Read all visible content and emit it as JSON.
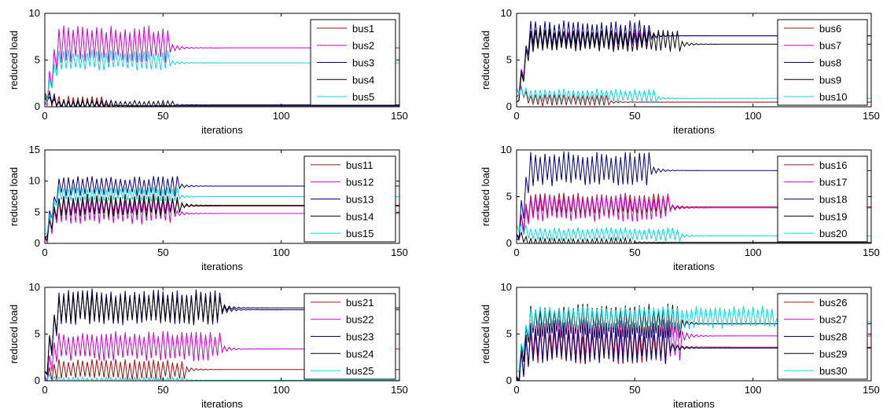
{
  "colors": {
    "bus_red": "#a01010",
    "bus_magenta": "#cc00cc",
    "bus_navy": "#000080",
    "bus_black": "#000000",
    "bus_cyan": "#00dddd"
  },
  "chart_data": [
    {
      "type": "line",
      "xlabel": "iterations",
      "ylabel": "reduced load",
      "xlim": [
        0,
        150
      ],
      "ylim": [
        0,
        10
      ],
      "xticks": [
        0,
        50,
        100,
        150
      ],
      "yticks": [
        0,
        5,
        10
      ],
      "legend_position": "top-right",
      "series": [
        {
          "name": "bus1",
          "color": "#a01010",
          "steady": 0.1,
          "amp": 0.7,
          "settle": 25,
          "start": 1.2,
          "offset": 0.2
        },
        {
          "name": "bus2",
          "color": "#cc00cc",
          "steady": 6.3,
          "amp": 1.6,
          "settle": 53,
          "start": 0.5,
          "offset": 0.4
        },
        {
          "name": "bus3",
          "color": "#000080",
          "steady": 0.1,
          "amp": 0.4,
          "settle": 30,
          "start": 1.5,
          "offset": 0.1
        },
        {
          "name": "bus4",
          "color": "#000000",
          "steady": 0.2,
          "amp": 0.3,
          "settle": 55,
          "start": 1.0,
          "offset": 0.1
        },
        {
          "name": "bus5",
          "color": "#00dddd",
          "steady": 4.7,
          "amp": 0.9,
          "settle": 53,
          "start": 0.5,
          "offset": 0.3
        }
      ]
    },
    {
      "type": "line",
      "xlabel": "iterations",
      "ylabel": "reduced load",
      "xlim": [
        0,
        150
      ],
      "ylim": [
        0,
        10
      ],
      "xticks": [
        0,
        50,
        100,
        150
      ],
      "yticks": [
        0,
        5,
        10
      ],
      "legend_position": "top-right",
      "series": [
        {
          "name": "bus6",
          "color": "#a01010",
          "steady": 0.5,
          "amp": 0.5,
          "settle": 40,
          "start": 2.0,
          "offset": 0.2
        },
        {
          "name": "bus7",
          "color": "#cc00cc",
          "steady": 7.6,
          "amp": 0.8,
          "settle": 57,
          "start": 1.0,
          "offset": -0.3
        },
        {
          "name": "bus8",
          "color": "#000080",
          "steady": 7.6,
          "amp": 1.2,
          "settle": 57,
          "start": 0.5,
          "offset": 0.2
        },
        {
          "name": "bus9",
          "color": "#000000",
          "steady": 6.7,
          "amp": 1.0,
          "settle": 70,
          "start": 0.5,
          "offset": 0.4
        },
        {
          "name": "bus10",
          "color": "#00dddd",
          "steady": 0.9,
          "amp": 0.6,
          "settle": 60,
          "start": 2.0,
          "offset": 0.3
        }
      ]
    },
    {
      "type": "line",
      "xlabel": "iterations",
      "ylabel": "reduced load",
      "xlim": [
        0,
        150
      ],
      "ylim": [
        0,
        15
      ],
      "xticks": [
        0,
        50,
        100,
        150
      ],
      "yticks": [
        0,
        5,
        10,
        15
      ],
      "legend_position": "top-right",
      "series": [
        {
          "name": "bus11",
          "color": "#a01010",
          "steady": 6.0,
          "amp": 1.0,
          "settle": 58,
          "start": 1.0,
          "offset": 0.0
        },
        {
          "name": "bus12",
          "color": "#cc00cc",
          "steady": 4.8,
          "amp": 1.8,
          "settle": 55,
          "start": 1.0,
          "offset": 0.5
        },
        {
          "name": "bus13",
          "color": "#000080",
          "steady": 9.2,
          "amp": 1.3,
          "settle": 57,
          "start": 1.0,
          "offset": 0.0
        },
        {
          "name": "bus14",
          "color": "#000000",
          "steady": 6.1,
          "amp": 1.5,
          "settle": 58,
          "start": 1.0,
          "offset": 0.0
        },
        {
          "name": "bus15",
          "color": "#00dddd",
          "steady": 7.5,
          "amp": 1.0,
          "settle": 57,
          "start": 1.5,
          "offset": 0.4
        }
      ]
    },
    {
      "type": "line",
      "xlabel": "iterations",
      "ylabel": "reduced load",
      "xlim": [
        0,
        150
      ],
      "ylim": [
        0,
        10
      ],
      "xticks": [
        0,
        50,
        100,
        150
      ],
      "yticks": [
        0,
        5,
        10
      ],
      "legend_position": "top-right",
      "series": [
        {
          "name": "bus16",
          "color": "#a01010",
          "steady": 3.9,
          "amp": 1.0,
          "settle": 65,
          "start": 1.0,
          "offset": 0.3
        },
        {
          "name": "bus17",
          "color": "#cc00cc",
          "steady": 3.8,
          "amp": 1.2,
          "settle": 65,
          "start": 1.0,
          "offset": 0.0
        },
        {
          "name": "bus18",
          "color": "#000080",
          "steady": 7.8,
          "amp": 1.5,
          "settle": 57,
          "start": 0.5,
          "offset": 0.2
        },
        {
          "name": "bus19",
          "color": "#000000",
          "steady": 0.1,
          "amp": 0.4,
          "settle": 50,
          "start": 1.0,
          "offset": 0.0
        },
        {
          "name": "bus20",
          "color": "#00dddd",
          "steady": 0.8,
          "amp": 0.6,
          "settle": 70,
          "start": 2.0,
          "offset": 0.2
        }
      ]
    },
    {
      "type": "line",
      "xlabel": "iterations",
      "ylabel": "reduced load",
      "xlim": [
        0,
        150
      ],
      "ylim": [
        0,
        10
      ],
      "xticks": [
        0,
        50,
        100,
        150
      ],
      "yticks": [
        0,
        5,
        10
      ],
      "legend_position": "top-right",
      "series": [
        {
          "name": "bus21",
          "color": "#a01010",
          "steady": 1.2,
          "amp": 0.9,
          "settle": 60,
          "start": 0.5,
          "offset": 0.0
        },
        {
          "name": "bus22",
          "color": "#cc00cc",
          "steady": 3.4,
          "amp": 1.3,
          "settle": 75,
          "start": 0.5,
          "offset": 0.3
        },
        {
          "name": "bus23",
          "color": "#000080",
          "steady": 7.6,
          "amp": 1.6,
          "settle": 75,
          "start": 1.0,
          "offset": 0.3
        },
        {
          "name": "bus24",
          "color": "#000000",
          "steady": 7.8,
          "amp": 1.4,
          "settle": 75,
          "start": 1.0,
          "offset": 0.0
        },
        {
          "name": "bus25",
          "color": "#00dddd",
          "steady": 0.05,
          "amp": 0.3,
          "settle": 60,
          "start": 0.5,
          "offset": 0.0
        }
      ]
    },
    {
      "type": "line",
      "xlabel": "iterations",
      "ylabel": "reduced load",
      "xlim": [
        0,
        150
      ],
      "ylim": [
        0,
        10
      ],
      "xticks": [
        0,
        50,
        100,
        150
      ],
      "yticks": [
        0,
        5,
        10
      ],
      "legend_position": "top-right",
      "series": [
        {
          "name": "bus26",
          "color": "#a01010",
          "steady": 3.6,
          "amp": 1.5,
          "settle": 65,
          "start": 0.5,
          "offset": 0.0
        },
        {
          "name": "bus27",
          "color": "#cc00cc",
          "steady": 4.8,
          "amp": 1.8,
          "settle": 70,
          "start": 0.5,
          "offset": -0.5
        },
        {
          "name": "bus28",
          "color": "#000080",
          "steady": 3.5,
          "amp": 1.8,
          "settle": 65,
          "start": 0.5,
          "offset": 0.5
        },
        {
          "name": "bus29",
          "color": "#000000",
          "steady": 6.1,
          "amp": 1.5,
          "settle": 70,
          "start": 0.5,
          "offset": 0.3
        },
        {
          "name": "bus30",
          "color": "#00dddd",
          "steady": 6.3,
          "amp": 1.0,
          "settle": 110,
          "start": 1.0,
          "offset": 0.5
        }
      ]
    }
  ]
}
